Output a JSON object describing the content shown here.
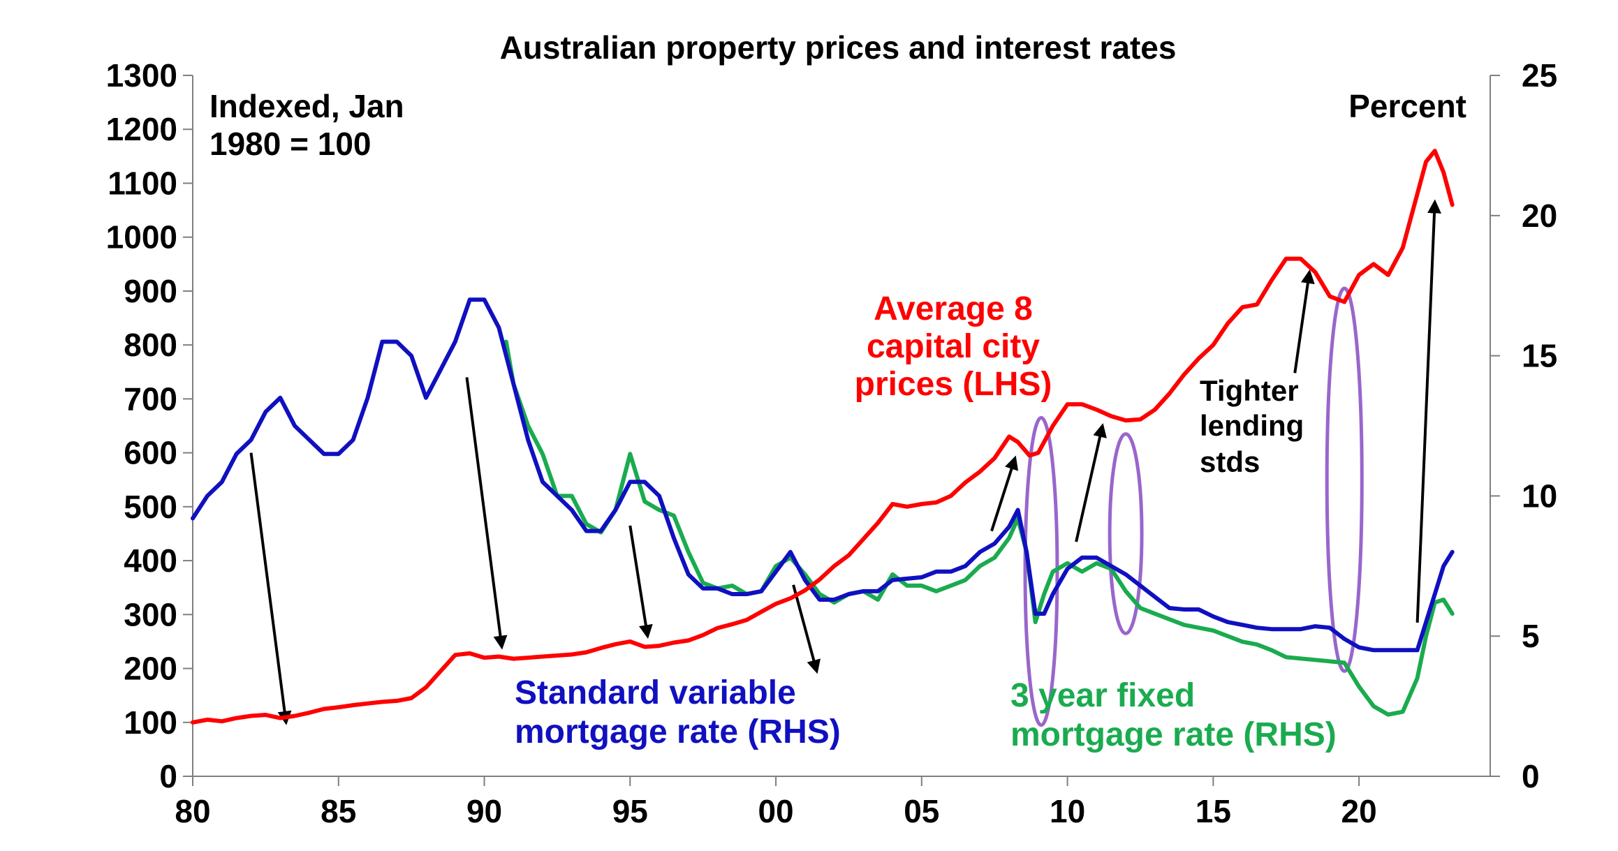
{
  "chart_data": {
    "type": "line",
    "title": "Australian property prices and interest rates",
    "left_axis": {
      "label": "Indexed, Jan 1980 = 100",
      "label_lines": [
        "Indexed, Jan",
        "1980 = 100"
      ],
      "range": [
        0,
        1300
      ],
      "ticks": [
        0,
        100,
        200,
        300,
        400,
        500,
        600,
        700,
        800,
        900,
        1000,
        1100,
        1200,
        1300
      ]
    },
    "right_axis": {
      "label": "Percent",
      "range": [
        0,
        25
      ],
      "ticks": [
        0,
        5,
        10,
        15,
        20,
        25
      ]
    },
    "x_axis": {
      "range": [
        1980,
        2024.5
      ],
      "ticks": [
        1980,
        1985,
        1990,
        1995,
        2000,
        2005,
        2010,
        2015,
        2020
      ],
      "tick_labels": [
        "80",
        "85",
        "90",
        "95",
        "00",
        "05",
        "10",
        "15",
        "20"
      ]
    },
    "grid": false,
    "series": [
      {
        "name": "Average 8 capital city prices (LHS)",
        "axis": "left",
        "color": "#ff0000",
        "x": [
          1980.0,
          1980.5,
          1981.0,
          1981.5,
          1982.0,
          1982.5,
          1983.0,
          1983.5,
          1984.0,
          1984.5,
          1985.0,
          1985.5,
          1986.0,
          1986.5,
          1987.0,
          1987.5,
          1988.0,
          1988.5,
          1989.0,
          1989.5,
          1990.0,
          1990.5,
          1991.0,
          1991.5,
          1992.0,
          1992.5,
          1993.0,
          1993.5,
          1994.0,
          1994.5,
          1995.0,
          1995.5,
          1996.0,
          1996.5,
          1997.0,
          1997.5,
          1998.0,
          1998.5,
          1999.0,
          1999.5,
          2000.0,
          2000.5,
          2001.0,
          2001.5,
          2002.0,
          2002.5,
          2003.0,
          2003.5,
          2004.0,
          2004.5,
          2005.0,
          2005.5,
          2006.0,
          2006.5,
          2007.0,
          2007.5,
          2008.0,
          2008.3,
          2008.7,
          2009.0,
          2009.5,
          2010.0,
          2010.5,
          2011.0,
          2011.5,
          2012.0,
          2012.5,
          2013.0,
          2013.5,
          2014.0,
          2014.5,
          2015.0,
          2015.5,
          2016.0,
          2016.5,
          2017.0,
          2017.5,
          2018.0,
          2018.5,
          2019.0,
          2019.5,
          2020.0,
          2020.5,
          2021.0,
          2021.5,
          2022.0,
          2022.3,
          2022.6,
          2022.9,
          2023.2
        ],
        "values": [
          100,
          105,
          102,
          108,
          112,
          114,
          108,
          112,
          118,
          125,
          128,
          132,
          135,
          138,
          140,
          145,
          165,
          195,
          225,
          228,
          220,
          222,
          218,
          220,
          222,
          224,
          226,
          230,
          238,
          245,
          250,
          240,
          242,
          248,
          252,
          262,
          275,
          282,
          290,
          305,
          320,
          330,
          345,
          365,
          390,
          410,
          440,
          470,
          505,
          500,
          505,
          508,
          520,
          545,
          565,
          590,
          630,
          620,
          595,
          600,
          650,
          690,
          690,
          680,
          668,
          660,
          662,
          680,
          710,
          745,
          775,
          800,
          840,
          870,
          875,
          920,
          960,
          960,
          935,
          890,
          880,
          930,
          950,
          930,
          980,
          1080,
          1140,
          1160,
          1120,
          1060
        ],
        "label_lines": [
          "Average 8",
          "capital city",
          "prices (LHS)"
        ]
      },
      {
        "name": "Standard variable mortgage rate (RHS)",
        "axis": "right",
        "color": "#1010c0",
        "x": [
          1980.0,
          1980.5,
          1981.0,
          1981.5,
          1982.0,
          1982.5,
          1983.0,
          1983.5,
          1984.0,
          1984.5,
          1985.0,
          1985.5,
          1986.0,
          1986.5,
          1987.0,
          1987.5,
          1988.0,
          1988.5,
          1989.0,
          1989.5,
          1990.0,
          1990.5,
          1991.0,
          1991.5,
          1992.0,
          1992.5,
          1993.0,
          1993.5,
          1994.0,
          1994.5,
          1995.0,
          1995.5,
          1996.0,
          1996.5,
          1997.0,
          1997.5,
          1998.0,
          1998.5,
          1999.0,
          1999.5,
          2000.0,
          2000.5,
          2001.0,
          2001.5,
          2002.0,
          2002.5,
          2003.0,
          2003.5,
          2004.0,
          2004.5,
          2005.0,
          2005.5,
          2006.0,
          2006.5,
          2007.0,
          2007.5,
          2008.0,
          2008.3,
          2008.6,
          2008.9,
          2009.2,
          2009.5,
          2010.0,
          2010.5,
          2011.0,
          2011.5,
          2012.0,
          2012.5,
          2013.0,
          2013.5,
          2014.0,
          2014.5,
          2015.0,
          2015.5,
          2016.0,
          2016.5,
          2017.0,
          2017.5,
          2018.0,
          2018.5,
          2019.0,
          2019.5,
          2020.0,
          2020.5,
          2021.0,
          2021.5,
          2022.0,
          2022.3,
          2022.6,
          2022.9,
          2023.2
        ],
        "values": [
          9.2,
          10.0,
          10.5,
          11.5,
          12.0,
          13.0,
          13.5,
          12.5,
          12.0,
          11.5,
          11.5,
          12.0,
          13.5,
          15.5,
          15.5,
          15.0,
          13.5,
          14.5,
          15.5,
          17.0,
          17.0,
          16.0,
          14.0,
          12.0,
          10.5,
          10.0,
          9.5,
          8.75,
          8.75,
          9.5,
          10.5,
          10.5,
          10.0,
          8.5,
          7.2,
          6.7,
          6.7,
          6.5,
          6.5,
          6.6,
          7.3,
          8.0,
          7.0,
          6.3,
          6.3,
          6.5,
          6.6,
          6.6,
          7.0,
          7.05,
          7.1,
          7.3,
          7.3,
          7.5,
          8.0,
          8.3,
          8.9,
          9.5,
          8.0,
          5.8,
          5.8,
          6.5,
          7.4,
          7.8,
          7.8,
          7.5,
          7.2,
          6.8,
          6.4,
          6.0,
          5.95,
          5.95,
          5.7,
          5.5,
          5.4,
          5.3,
          5.25,
          5.25,
          5.25,
          5.35,
          5.3,
          4.9,
          4.6,
          4.5,
          4.5,
          4.5,
          4.5,
          5.5,
          6.5,
          7.5,
          8.0
        ],
        "label_lines": [
          "Standard variable",
          "mortgage rate (RHS)"
        ]
      },
      {
        "name": "3 year fixed mortgage rate (RHS)",
        "axis": "right",
        "color": "#1aab4f",
        "x": [
          1990.75,
          1991.0,
          1991.5,
          1992.0,
          1992.5,
          1993.0,
          1993.5,
          1994.0,
          1994.5,
          1995.0,
          1995.5,
          1996.0,
          1996.5,
          1997.0,
          1997.5,
          1998.0,
          1998.5,
          1999.0,
          1999.5,
          2000.0,
          2000.5,
          2001.0,
          2001.5,
          2002.0,
          2002.5,
          2003.0,
          2003.5,
          2004.0,
          2004.5,
          2005.0,
          2005.5,
          2006.0,
          2006.5,
          2007.0,
          2007.5,
          2008.0,
          2008.3,
          2008.6,
          2008.9,
          2009.2,
          2009.5,
          2010.0,
          2010.5,
          2011.0,
          2011.5,
          2012.0,
          2012.5,
          2013.0,
          2013.5,
          2014.0,
          2014.5,
          2015.0,
          2015.5,
          2016.0,
          2016.5,
          2017.0,
          2017.5,
          2018.0,
          2018.5,
          2019.0,
          2019.5,
          2020.0,
          2020.5,
          2021.0,
          2021.5,
          2022.0,
          2022.3,
          2022.6,
          2022.9,
          2023.2
        ],
        "values": [
          15.5,
          14.0,
          12.5,
          11.5,
          10.0,
          10.0,
          9.0,
          8.7,
          9.5,
          11.5,
          9.8,
          9.5,
          9.3,
          8.0,
          6.9,
          6.7,
          6.8,
          6.5,
          6.6,
          7.5,
          7.8,
          7.2,
          6.5,
          6.2,
          6.5,
          6.6,
          6.3,
          7.2,
          6.8,
          6.8,
          6.6,
          6.8,
          7.0,
          7.5,
          7.8,
          8.5,
          9.2,
          8.0,
          5.5,
          6.5,
          7.3,
          7.6,
          7.3,
          7.6,
          7.4,
          6.6,
          6.0,
          5.8,
          5.6,
          5.4,
          5.3,
          5.2,
          5.0,
          4.8,
          4.7,
          4.5,
          4.25,
          4.2,
          4.15,
          4.1,
          4.05,
          3.2,
          2.5,
          2.2,
          2.3,
          3.5,
          5.0,
          6.2,
          6.3,
          5.8
        ],
        "label_lines": [
          "3 year fixed",
          "mortgage rate (RHS)"
        ]
      }
    ],
    "annotations": [
      {
        "text": "Tighter lending stds",
        "lines": [
          "Tighter",
          "lending",
          "stds"
        ]
      }
    ]
  },
  "colors": {
    "price": "#ff0000",
    "variable": "#1010c0",
    "fixed": "#1aab4f",
    "ellipse": "#9966cc",
    "arrow": "#000000"
  }
}
